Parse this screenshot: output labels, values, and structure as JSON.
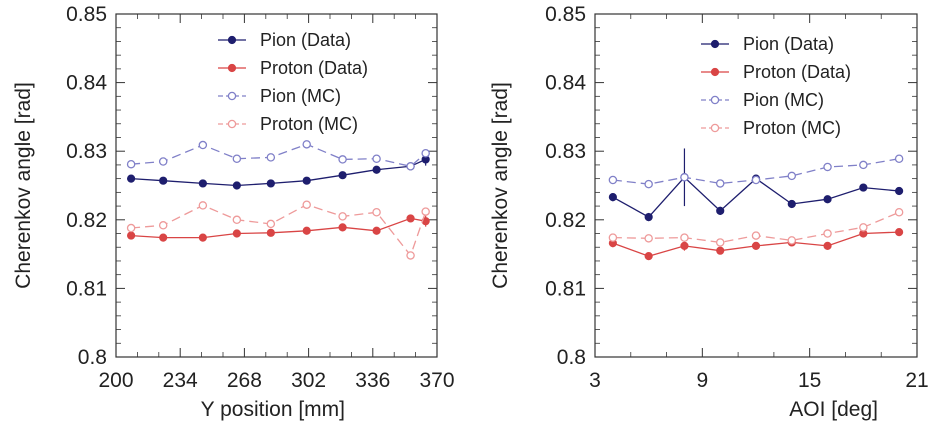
{
  "chart_data": [
    {
      "type": "line",
      "xlabel": "Y position [mm]",
      "ylabel": "Cherenkov angle [rad]",
      "xlim": [
        200,
        370
      ],
      "ylim": [
        0.8,
        0.85
      ],
      "xticks": [
        "200",
        "234",
        "268",
        "302",
        "336",
        "370"
      ],
      "yticks": [
        "0.8",
        "0.81",
        "0.82",
        "0.83",
        "0.84",
        "0.85"
      ],
      "legend_position": "top-right",
      "x": [
        208,
        225,
        246,
        264,
        282,
        301,
        320,
        338,
        356,
        364
      ],
      "series": [
        {
          "name": "Pion (Data)",
          "color": "#1e1e6e",
          "marker": "filled",
          "dashed": false,
          "values": [
            0.826,
            0.8257,
            0.8253,
            0.825,
            0.8253,
            0.8257,
            0.8265,
            0.8273,
            0.8278,
            0.8288
          ],
          "errors": [
            0.0004,
            0.0004,
            0.0004,
            0.0004,
            0.0004,
            0.0004,
            0.0004,
            0.0005,
            0.0005,
            0.0009
          ]
        },
        {
          "name": "Proton (Data)",
          "color": "#d94545",
          "marker": "filled",
          "dashed": false,
          "values": [
            0.8177,
            0.8174,
            0.8174,
            0.818,
            0.8181,
            0.8184,
            0.8189,
            0.8184,
            0.8202,
            0.8198
          ],
          "errors": [
            0.0004,
            0.0004,
            0.0004,
            0.0004,
            0.0004,
            0.0004,
            0.0005,
            0.0005,
            0.0005,
            0.0008
          ]
        },
        {
          "name": "Pion (MC)",
          "color": "#8080c8",
          "marker": "open",
          "dashed": true,
          "values": [
            0.8281,
            0.8285,
            0.8309,
            0.8289,
            0.8291,
            0.831,
            0.8288,
            0.8289,
            0.8278,
            0.8297
          ],
          "errors": [
            0.0004,
            0.0004,
            0.0004,
            0.0004,
            0.0004,
            0.0004,
            0.0004,
            0.0004,
            0.0004,
            0.0004
          ]
        },
        {
          "name": "Proton (MC)",
          "color": "#ee9a9a",
          "marker": "open",
          "dashed": true,
          "values": [
            0.8188,
            0.8192,
            0.8221,
            0.82,
            0.8194,
            0.8222,
            0.8205,
            0.8211,
            0.8148,
            0.8212
          ],
          "errors": [
            0.0004,
            0.0004,
            0.0004,
            0.0004,
            0.0004,
            0.0004,
            0.0004,
            0.0004,
            0.0004,
            0.0004
          ]
        }
      ]
    },
    {
      "type": "line",
      "xlabel": "AOI [deg]",
      "ylabel": "Cherenkov angle [rad]",
      "xlim": [
        3,
        21
      ],
      "ylim": [
        0.8,
        0.85
      ],
      "xticks": [
        "3",
        "9",
        "15",
        "21"
      ],
      "yticks": [
        "0.8",
        "0.81",
        "0.82",
        "0.83",
        "0.84",
        "0.85"
      ],
      "legend_position": "top-right",
      "x": [
        4,
        6,
        8,
        10,
        12,
        14,
        16,
        18,
        20
      ],
      "series": [
        {
          "name": "Pion (Data)",
          "color": "#1e1e6e",
          "marker": "filled",
          "dashed": false,
          "values": [
            0.8233,
            0.8204,
            0.8262,
            0.8213,
            0.826,
            0.8223,
            0.823,
            0.8247,
            0.8242
          ],
          "errors": [
            0.0006,
            0.0006,
            0.0042,
            0.0006,
            0.0006,
            0.0005,
            0.0005,
            0.0005,
            0.0005
          ]
        },
        {
          "name": "Proton (Data)",
          "color": "#d94545",
          "marker": "filled",
          "dashed": false,
          "values": [
            0.8166,
            0.8147,
            0.8162,
            0.8155,
            0.8162,
            0.8167,
            0.8162,
            0.818,
            0.8182
          ],
          "errors": [
            0.0006,
            0.0005,
            0.0007,
            0.0005,
            0.0005,
            0.0005,
            0.0005,
            0.0005,
            0.0005
          ]
        },
        {
          "name": "Pion (MC)",
          "color": "#8080c8",
          "marker": "open",
          "dashed": true,
          "values": [
            0.8258,
            0.8252,
            0.8262,
            0.8253,
            0.8258,
            0.8264,
            0.8277,
            0.828,
            0.8289
          ],
          "errors": [
            0.0003,
            0.0003,
            0.0003,
            0.0003,
            0.0003,
            0.0003,
            0.0003,
            0.0003,
            0.0003
          ]
        },
        {
          "name": "Proton (MC)",
          "color": "#ee9a9a",
          "marker": "open",
          "dashed": true,
          "values": [
            0.8174,
            0.8173,
            0.8174,
            0.8167,
            0.8177,
            0.817,
            0.818,
            0.8189,
            0.8211
          ],
          "errors": [
            0.0003,
            0.0003,
            0.0003,
            0.0003,
            0.0003,
            0.0003,
            0.0003,
            0.0003,
            0.0003
          ]
        }
      ]
    }
  ]
}
